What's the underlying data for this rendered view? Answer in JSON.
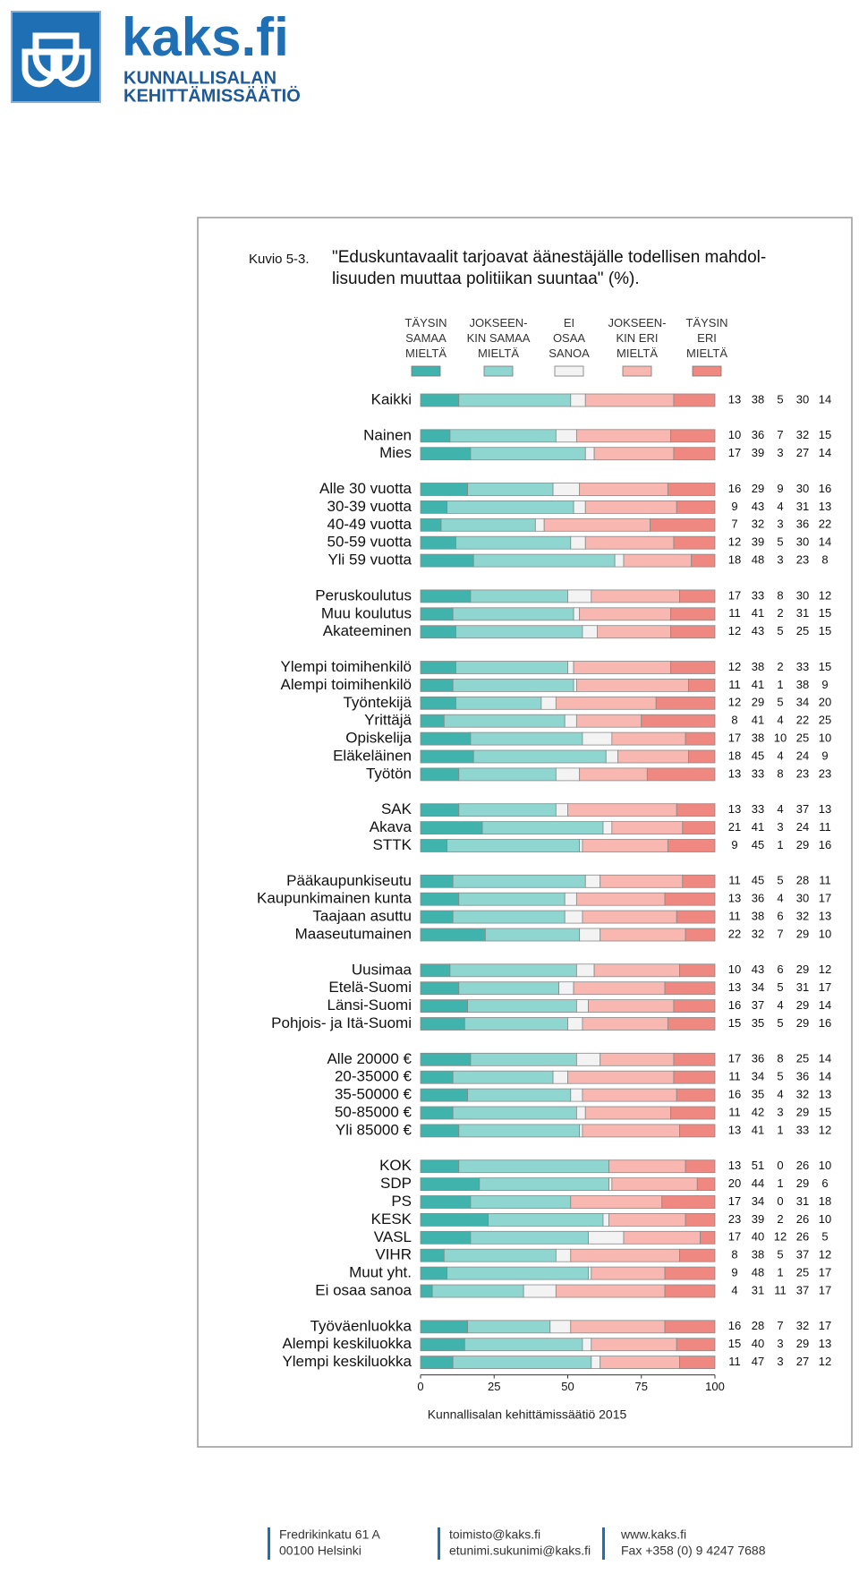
{
  "header": {
    "logo_text": "kaks.fi",
    "org_line1": "KUNNALLISALAN",
    "org_line2": "KEHITTÄMISSÄÄTIÖ"
  },
  "chart_data": {
    "type": "stacked-bar-horizontal",
    "figure_label": "Kuvio 5-3.",
    "title": "\"Eduskuntavaalit tarjoavat äänestäjälle todellisen mahdol-\nlisuuden muuttaa politiikan suuntaa\" (%).",
    "source": "Kunnallisalan kehittämissäätiö 2015",
    "categories": [
      "Kaikki",
      null,
      "Nainen",
      "Mies",
      null,
      "Alle 30 vuotta",
      "30-39 vuotta",
      "40-49 vuotta",
      "50-59 vuotta",
      "Yli 59 vuotta",
      null,
      "Peruskoulutus",
      "Muu koulutus",
      "Akateeminen",
      null,
      "Ylempi toimihenkilö",
      "Alempi toimihenkilö",
      "Työntekijä",
      "Yrittäjä",
      "Opiskelija",
      "Eläkeläinen",
      "Työtön",
      null,
      "SAK",
      "Akava",
      "STTK",
      null,
      "Pääkaupunkiseutu",
      "Kaupunkimainen kunta",
      "Taajaan asuttu",
      "Maaseutumainen",
      null,
      "Uusimaa",
      "Etelä-Suomi",
      "Länsi-Suomi",
      "Pohjois- ja Itä-Suomi",
      null,
      "Alle 20000 €",
      "20-35000 €",
      "35-50000 €",
      "50-85000 €",
      "Yli 85000 €",
      null,
      "KOK",
      "SDP",
      "PS",
      "KESK",
      "VASL",
      "VIHR",
      "Muut yht.",
      "Ei osaa sanoa",
      null,
      "Työväenluokka",
      "Alempi keskiluokka",
      "Ylempi keskiluokka"
    ],
    "series": [
      {
        "name": "TÄYSIN\nSAMAA\nMIELTÄ",
        "color": "#3fb3ac",
        "values": [
          13,
          null,
          10,
          17,
          null,
          16,
          9,
          7,
          12,
          18,
          null,
          17,
          11,
          12,
          null,
          12,
          11,
          12,
          8,
          17,
          18,
          13,
          null,
          13,
          21,
          9,
          null,
          11,
          13,
          11,
          22,
          null,
          10,
          13,
          16,
          15,
          null,
          17,
          11,
          16,
          11,
          13,
          null,
          13,
          20,
          17,
          23,
          17,
          8,
          9,
          4,
          null,
          16,
          15,
          11
        ]
      },
      {
        "name": "JOKSEEN-\nKIN SAMAA\nMIELTÄ",
        "color": "#8fd6d1",
        "values": [
          38,
          null,
          36,
          39,
          null,
          29,
          43,
          32,
          39,
          48,
          null,
          33,
          41,
          43,
          null,
          38,
          41,
          29,
          41,
          38,
          45,
          33,
          null,
          33,
          41,
          45,
          null,
          45,
          36,
          38,
          32,
          null,
          43,
          34,
          37,
          35,
          null,
          36,
          34,
          35,
          42,
          41,
          null,
          51,
          44,
          34,
          39,
          40,
          38,
          48,
          31,
          null,
          28,
          40,
          47
        ]
      },
      {
        "name": "EI\nOSAA\nSANOA",
        "color": "#f3f3f3",
        "values": [
          5,
          null,
          7,
          3,
          null,
          9,
          4,
          3,
          5,
          3,
          null,
          8,
          2,
          5,
          null,
          2,
          1,
          5,
          4,
          10,
          4,
          8,
          null,
          4,
          3,
          1,
          null,
          5,
          4,
          6,
          7,
          null,
          6,
          5,
          4,
          5,
          null,
          8,
          5,
          4,
          3,
          1,
          null,
          0,
          1,
          0,
          2,
          12,
          5,
          1,
          11,
          null,
          7,
          3,
          3
        ]
      },
      {
        "name": "JOKSEEN-\nKIN ERI\nMIELTÄ",
        "color": "#f8b7b0",
        "values": [
          30,
          null,
          32,
          27,
          null,
          30,
          31,
          36,
          30,
          23,
          null,
          30,
          31,
          25,
          null,
          33,
          38,
          34,
          22,
          25,
          24,
          23,
          null,
          37,
          24,
          29,
          null,
          28,
          30,
          32,
          29,
          null,
          29,
          31,
          29,
          29,
          null,
          25,
          36,
          32,
          29,
          33,
          null,
          26,
          29,
          31,
          26,
          26,
          37,
          25,
          37,
          null,
          32,
          29,
          27
        ]
      },
      {
        "name": "TÄYSIN\nERI\nMIELTÄ",
        "color": "#ee8880",
        "values": [
          14,
          null,
          15,
          14,
          null,
          16,
          13,
          22,
          14,
          8,
          null,
          12,
          15,
          15,
          null,
          15,
          9,
          20,
          25,
          10,
          9,
          23,
          null,
          13,
          11,
          16,
          null,
          11,
          17,
          13,
          10,
          null,
          12,
          17,
          14,
          16,
          null,
          14,
          14,
          13,
          15,
          12,
          null,
          10,
          6,
          18,
          10,
          5,
          12,
          17,
          17,
          null,
          17,
          13,
          12
        ]
      }
    ],
    "xlim": [
      0,
      100
    ],
    "xticks": [
      0,
      25,
      50,
      75,
      100
    ]
  },
  "footer": {
    "address1": "Fredrikinkatu 61 A",
    "address2": "00100 Helsinki",
    "email1": "toimisto@kaks.fi",
    "email2": "etunimi.sukunimi@kaks.fi",
    "web": "www.kaks.fi",
    "fax": "Fax +358 (0) 9 4247 7688"
  }
}
